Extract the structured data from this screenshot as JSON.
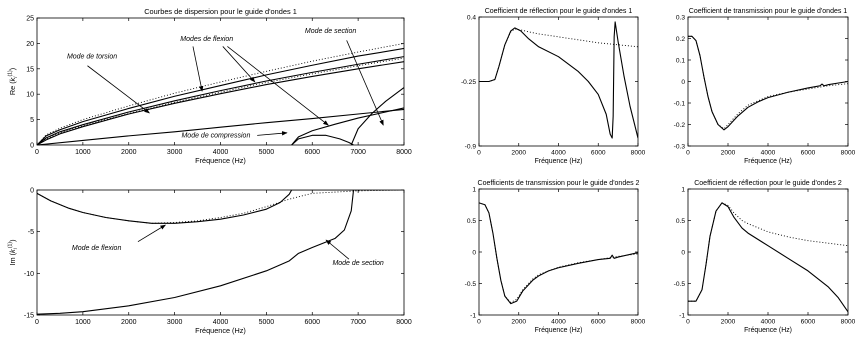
{
  "chart_data": [
    {
      "id": "dispersion-real",
      "type": "line",
      "title": "Courbes de dispersion pour le guide d'ondes 1",
      "xlabel": "Fréquence (Hz)",
      "ylabel": "Re (k_i^(1))",
      "xlim": [
        0,
        8000
      ],
      "ylim": [
        0,
        25
      ],
      "xticks": [
        0,
        1000,
        2000,
        3000,
        4000,
        5000,
        6000,
        7000,
        8000
      ],
      "yticks": [
        0,
        5,
        10,
        15,
        20,
        25
      ],
      "grid": false,
      "series": [
        {
          "style": "solid",
          "x": [
            0,
            200,
            500,
            1000,
            2000,
            3000,
            4000,
            5000,
            6000,
            7000,
            8000
          ],
          "y": [
            0,
            1.0,
            2.2,
            3.6,
            6.1,
            8.2,
            10.1,
            11.9,
            13.5,
            15.0,
            16.4
          ]
        },
        {
          "style": "solid",
          "x": [
            0,
            200,
            500,
            1000,
            2000,
            3000,
            4000,
            5000,
            6000,
            7000,
            8000
          ],
          "y": [
            0,
            1.4,
            2.6,
            4.0,
            6.5,
            8.7,
            10.7,
            12.6,
            14.3,
            15.9,
            17.4
          ]
        },
        {
          "style": "solid",
          "x": [
            0,
            200,
            500,
            1000,
            2000,
            3000,
            4000,
            5000,
            6000,
            7000,
            8000
          ],
          "y": [
            0,
            1.8,
            3.0,
            4.6,
            7.2,
            9.6,
            11.7,
            13.8,
            15.7,
            17.5,
            19.0
          ]
        },
        {
          "style": "dotted",
          "x": [
            0,
            200,
            500,
            1000,
            2000,
            3000,
            4000,
            5000,
            6000,
            7000,
            8000
          ],
          "y": [
            0,
            2.0,
            3.3,
            5.0,
            7.7,
            10.2,
            12.4,
            14.5,
            16.5,
            18.3,
            20.0
          ]
        },
        {
          "style": "dotted",
          "x": [
            0,
            200,
            500,
            1000,
            2000,
            3000,
            4000,
            5000,
            6000,
            7000,
            8000
          ],
          "y": [
            0,
            1.2,
            2.4,
            3.8,
            6.2,
            8.4,
            10.4,
            12.3,
            14.0,
            15.6,
            17.1
          ]
        },
        {
          "style": "solid",
          "x": [
            0,
            1000,
            2000,
            3000,
            4000,
            5000,
            6000,
            7000,
            8000
          ],
          "y": [
            0,
            0.9,
            1.8,
            2.6,
            3.5,
            4.4,
            5.2,
            6.1,
            7.0
          ]
        },
        {
          "style": "solid",
          "x": [
            5550,
            5700,
            6000,
            6500,
            7000,
            7500,
            8000
          ],
          "y": [
            0,
            1.6,
            2.8,
            4.1,
            5.3,
            6.3,
            7.3
          ]
        },
        {
          "style": "solid",
          "x": [
            5550,
            5700,
            6000,
            6300,
            6600,
            6800,
            6900
          ],
          "y": [
            0,
            1.2,
            1.9,
            1.9,
            1.2,
            0.5,
            0
          ]
        },
        {
          "style": "solid",
          "x": [
            6850,
            7000,
            7300,
            7600,
            8000
          ],
          "y": [
            0,
            3.2,
            6.2,
            8.6,
            11.3
          ]
        }
      ],
      "annotations": [
        {
          "text": "Mode de torsion",
          "x": 1200,
          "y": 17
        },
        {
          "text": "Modes de flexion",
          "x": 3700,
          "y": 20.5
        },
        {
          "text": "Mode de section",
          "x": 6400,
          "y": 22
        },
        {
          "text": "Mode de compression",
          "x": 3900,
          "y": 1.5
        }
      ]
    },
    {
      "id": "dispersion-imag",
      "type": "line",
      "title": "",
      "xlabel": "Fréquence (Hz)",
      "ylabel": "Im (k_i^(1))",
      "xlim": [
        0,
        8000
      ],
      "ylim": [
        -15,
        0
      ],
      "xticks": [
        0,
        1000,
        2000,
        3000,
        4000,
        5000,
        6000,
        7000,
        8000
      ],
      "yticks": [
        -15,
        -10,
        -5,
        0
      ],
      "grid": false,
      "series": [
        {
          "style": "solid",
          "x": [
            0,
            300,
            700,
            1000,
            1500,
            2000,
            2500,
            3000,
            3500,
            4000,
            4500,
            5000,
            5300,
            5500,
            5550,
            6000,
            7000,
            8000
          ],
          "y": [
            -0.4,
            -1.3,
            -2.2,
            -2.7,
            -3.3,
            -3.7,
            -4.0,
            -4.0,
            -3.8,
            -3.5,
            -3.0,
            -2.3,
            -1.5,
            -0.5,
            0,
            0,
            0,
            0
          ]
        },
        {
          "style": "dotted",
          "x": [
            0,
            300,
            700,
            1000,
            1500,
            2000,
            2500,
            3000,
            3500,
            4000,
            4500,
            5000,
            5500,
            6000,
            7000,
            8000
          ],
          "y": [
            -0.4,
            -1.3,
            -2.2,
            -2.7,
            -3.3,
            -3.7,
            -4.0,
            -3.9,
            -3.7,
            -3.3,
            -2.8,
            -2.0,
            -1.1,
            -0.4,
            -0.1,
            0
          ]
        },
        {
          "style": "solid",
          "x": [
            0,
            500,
            1000,
            2000,
            3000,
            4000,
            5000,
            5500,
            5700,
            6000,
            6500,
            6700,
            6850,
            6900,
            7000,
            8000
          ],
          "y": [
            -14.9,
            -14.8,
            -14.6,
            -13.9,
            -12.9,
            -11.5,
            -9.7,
            -8.5,
            -7.6,
            -6.9,
            -5.8,
            -4.8,
            -2.5,
            0,
            0,
            0
          ]
        }
      ],
      "annotations": [
        {
          "text": "Mode de flexion",
          "x": 1300,
          "y": -7.2
        },
        {
          "text": "Mode de section",
          "x": 7000,
          "y": -9
        }
      ]
    },
    {
      "id": "reflection-1",
      "type": "line",
      "title": "Coefficient de réflection pour le guide d'ondes 1",
      "xlabel": "Fréquence (Hz)",
      "ylabel": "",
      "xlim": [
        0,
        8000
      ],
      "ylim": [
        -0.9,
        0.4
      ],
      "xticks": [
        0,
        2000,
        4000,
        6000,
        8000
      ],
      "yticks": [
        -0.9,
        -0.25,
        0.4
      ],
      "grid": false,
      "series": [
        {
          "style": "solid",
          "x": [
            0,
            500,
            800,
            1000,
            1300,
            1600,
            1800,
            2100,
            2500,
            3000,
            4000,
            5000,
            5500,
            6000,
            6400,
            6600,
            6700,
            6750,
            6800,
            6850,
            7000,
            7300,
            7600,
            8000
          ],
          "y": [
            -0.25,
            -0.25,
            -0.23,
            -0.1,
            0.12,
            0.26,
            0.29,
            0.26,
            0.18,
            0.1,
            0.0,
            -0.15,
            -0.25,
            -0.38,
            -0.58,
            -0.78,
            -0.82,
            -0.6,
            0.2,
            0.35,
            0.15,
            -0.2,
            -0.5,
            -0.82
          ]
        },
        {
          "style": "dotted",
          "x": [
            0,
            500,
            800,
            1000,
            1300,
            1600,
            1800,
            2100,
            2500,
            3000,
            4000,
            5000,
            6000,
            7000,
            8000
          ],
          "y": [
            -0.25,
            -0.25,
            -0.23,
            -0.1,
            0.12,
            0.25,
            0.28,
            0.27,
            0.25,
            0.23,
            0.2,
            0.17,
            0.14,
            0.12,
            0.1
          ]
        }
      ],
      "annotations": []
    },
    {
      "id": "transmission-1",
      "type": "line",
      "title": "Coefficient de transmission pour le guide d'ondes 1",
      "xlabel": "Fréquence (Hz)",
      "ylabel": "",
      "xlim": [
        0,
        8000
      ],
      "ylim": [
        -0.3,
        0.3
      ],
      "xticks": [
        0,
        2000,
        4000,
        6000,
        8000
      ],
      "yticks": [
        -0.3,
        -0.2,
        -0.1,
        0,
        0.1,
        0.2,
        0.3
      ],
      "grid": false,
      "series": [
        {
          "style": "solid",
          "x": [
            0,
            200,
            400,
            600,
            800,
            1000,
            1200,
            1500,
            1800,
            2000,
            2500,
            3000,
            3500,
            4000,
            5000,
            6000,
            6600,
            6700,
            6800,
            7000,
            8000
          ],
          "y": [
            0.21,
            0.21,
            0.19,
            0.12,
            0.02,
            -0.07,
            -0.14,
            -0.2,
            -0.225,
            -0.21,
            -0.16,
            -0.12,
            -0.095,
            -0.075,
            -0.05,
            -0.03,
            -0.02,
            -0.012,
            -0.02,
            -0.015,
            0
          ]
        },
        {
          "style": "dotted",
          "x": [
            0,
            200,
            400,
            600,
            800,
            1000,
            1200,
            1500,
            1800,
            2000,
            2500,
            3000,
            4000,
            5000,
            6000,
            7000,
            8000
          ],
          "y": [
            0.21,
            0.21,
            0.19,
            0.12,
            0.02,
            -0.07,
            -0.14,
            -0.2,
            -0.22,
            -0.2,
            -0.15,
            -0.11,
            -0.07,
            -0.05,
            -0.035,
            -0.02,
            -0.01
          ]
        }
      ],
      "annotations": []
    },
    {
      "id": "transmission-2",
      "type": "line",
      "title": "Coefficients de transmission pour le guide d'ondes 2",
      "xlabel": "Fréquence (Hz)",
      "ylabel": "",
      "xlim": [
        0,
        8000
      ],
      "ylim": [
        -1,
        1
      ],
      "xticks": [
        0,
        2000,
        4000,
        6000,
        8000
      ],
      "yticks": [
        -1,
        -0.5,
        0,
        0.5,
        1
      ],
      "grid": false,
      "series": [
        {
          "style": "solid",
          "x": [
            0,
            300,
            500,
            700,
            900,
            1100,
            1300,
            1600,
            1900,
            2200,
            2700,
            3000,
            3500,
            4000,
            5000,
            6000,
            6600,
            6700,
            6800,
            7000,
            8000
          ],
          "y": [
            0.78,
            0.75,
            0.62,
            0.3,
            -0.1,
            -0.45,
            -0.7,
            -0.82,
            -0.78,
            -0.62,
            -0.45,
            -0.38,
            -0.3,
            -0.25,
            -0.18,
            -0.12,
            -0.1,
            -0.05,
            -0.1,
            -0.08,
            -0.01
          ]
        },
        {
          "style": "dotted",
          "x": [
            0,
            300,
            500,
            700,
            900,
            1100,
            1300,
            1600,
            1900,
            2200,
            2700,
            3000,
            4000,
            5000,
            6000,
            7000,
            8000
          ],
          "y": [
            0.78,
            0.75,
            0.62,
            0.3,
            -0.1,
            -0.45,
            -0.7,
            -0.8,
            -0.75,
            -0.6,
            -0.43,
            -0.36,
            -0.24,
            -0.17,
            -0.12,
            -0.07,
            -0.03
          ]
        }
      ],
      "annotations": []
    },
    {
      "id": "reflection-2",
      "type": "line",
      "title": "Coefficient de réflection pour le guide d'ondes 2",
      "xlabel": "Fréquence (Hz)",
      "ylabel": "",
      "xlim": [
        0,
        8000
      ],
      "ylim": [
        -1,
        1
      ],
      "xticks": [
        0,
        2000,
        4000,
        6000,
        8000
      ],
      "yticks": [
        -1,
        -0.5,
        0,
        0.5,
        1
      ],
      "grid": false,
      "series": [
        {
          "style": "solid",
          "x": [
            0,
            400,
            700,
            900,
            1100,
            1400,
            1700,
            2000,
            2300,
            2700,
            3000,
            4000,
            5000,
            6000,
            7000,
            7500,
            8000
          ],
          "y": [
            -0.78,
            -0.78,
            -0.6,
            -0.2,
            0.25,
            0.65,
            0.78,
            0.72,
            0.55,
            0.38,
            0.3,
            0.1,
            -0.1,
            -0.3,
            -0.55,
            -0.72,
            -0.95
          ]
        },
        {
          "style": "dotted",
          "x": [
            0,
            400,
            700,
            900,
            1100,
            1400,
            1700,
            2000,
            2300,
            2700,
            3000,
            4000,
            5000,
            6000,
            7000,
            8000
          ],
          "y": [
            -0.78,
            -0.78,
            -0.6,
            -0.2,
            0.25,
            0.65,
            0.78,
            0.74,
            0.62,
            0.5,
            0.45,
            0.32,
            0.24,
            0.18,
            0.14,
            0.1
          ]
        }
      ],
      "annotations": []
    }
  ]
}
